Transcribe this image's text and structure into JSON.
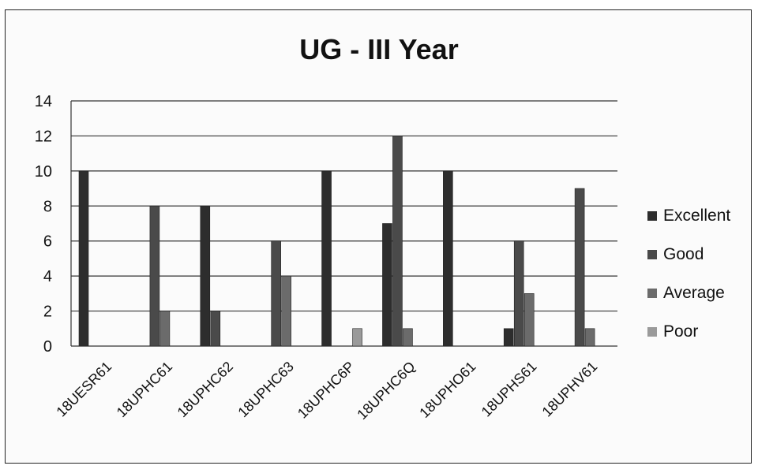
{
  "chart_data": {
    "type": "bar",
    "title": "UG - III Year",
    "categories": [
      "18UESR61",
      "18UPHC61",
      "18UPHC62",
      "18UPHC63",
      "18UPHC6P",
      "18UPHC6Q",
      "18UPHO61",
      "18UPHS61",
      "18UPHV61"
    ],
    "series": [
      {
        "name": "Excellent",
        "color": "#2d2d2d",
        "values": [
          10,
          0,
          8,
          0,
          10,
          7,
          10,
          1,
          0
        ]
      },
      {
        "name": "Good",
        "color": "#4a4a4a",
        "values": [
          0,
          8,
          2,
          6,
          0,
          12,
          0,
          6,
          9
        ]
      },
      {
        "name": "Average",
        "color": "#6b6b6b",
        "values": [
          0,
          2,
          0,
          4,
          0,
          1,
          0,
          3,
          1
        ]
      },
      {
        "name": "Poor",
        "color": "#9a9a9a",
        "values": [
          0,
          0,
          0,
          0,
          1,
          0,
          0,
          0,
          0
        ]
      }
    ],
    "ylim": [
      0,
      14
    ],
    "yticks": [
      0,
      2,
      4,
      6,
      8,
      10,
      12,
      14
    ],
    "grid": true,
    "legend_position": "right",
    "xlabel": "",
    "ylabel": ""
  }
}
